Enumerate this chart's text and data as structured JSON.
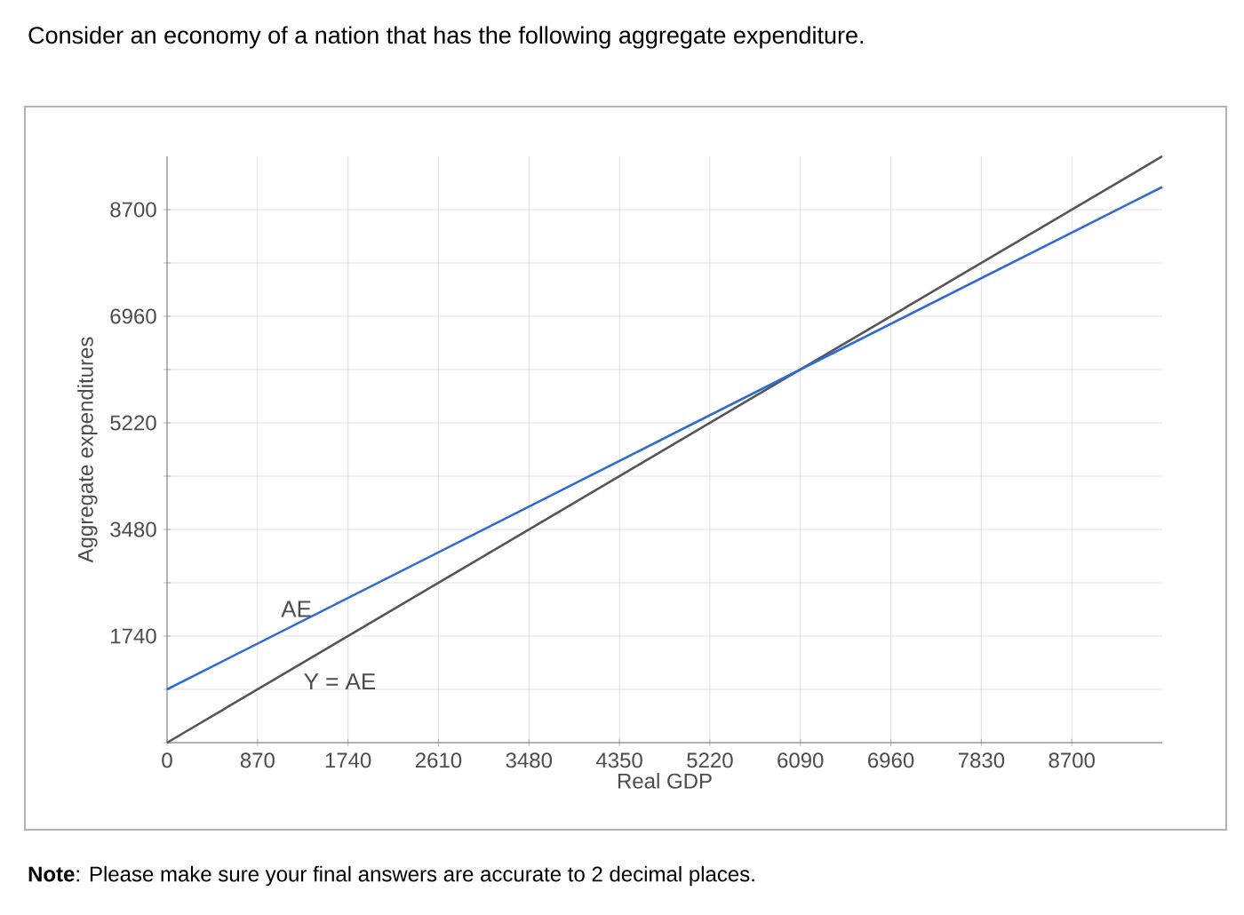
{
  "chart_data": {
    "type": "line",
    "title": "Consider an economy of a nation that has the following aggregate expenditure.",
    "xlabel": "Real GDP",
    "ylabel": "Aggregate expenditures",
    "xlim": [
      0,
      9570
    ],
    "ylim": [
      0,
      9570
    ],
    "xticks": [
      0,
      870,
      1740,
      2610,
      3480,
      4350,
      5220,
      6090,
      6960,
      7830,
      8700
    ],
    "yticks": [
      {
        "value": 0,
        "label": null
      },
      {
        "value": 870,
        "label": null
      },
      1740,
      {
        "value": 2610,
        "label": null
      },
      3480,
      {
        "value": 4350,
        "label": null
      },
      5220,
      {
        "value": 6090,
        "label": null
      },
      6960,
      {
        "value": 7830,
        "label": null
      },
      8700
    ],
    "grid": true,
    "series": [
      {
        "name": "Y = AE",
        "x": [
          0,
          6090,
          9570
        ],
        "values": [
          0,
          6090,
          9570
        ],
        "color": "#555555"
      },
      {
        "name": "AE",
        "x": [
          0,
          6090,
          9570
        ],
        "values": [
          870,
          6090,
          9070
        ],
        "color": "#2f6bd6"
      }
    ],
    "annotations": [
      "**Note**: Please make sure your final answers are accurate to 2 decimal places."
    ]
  }
}
